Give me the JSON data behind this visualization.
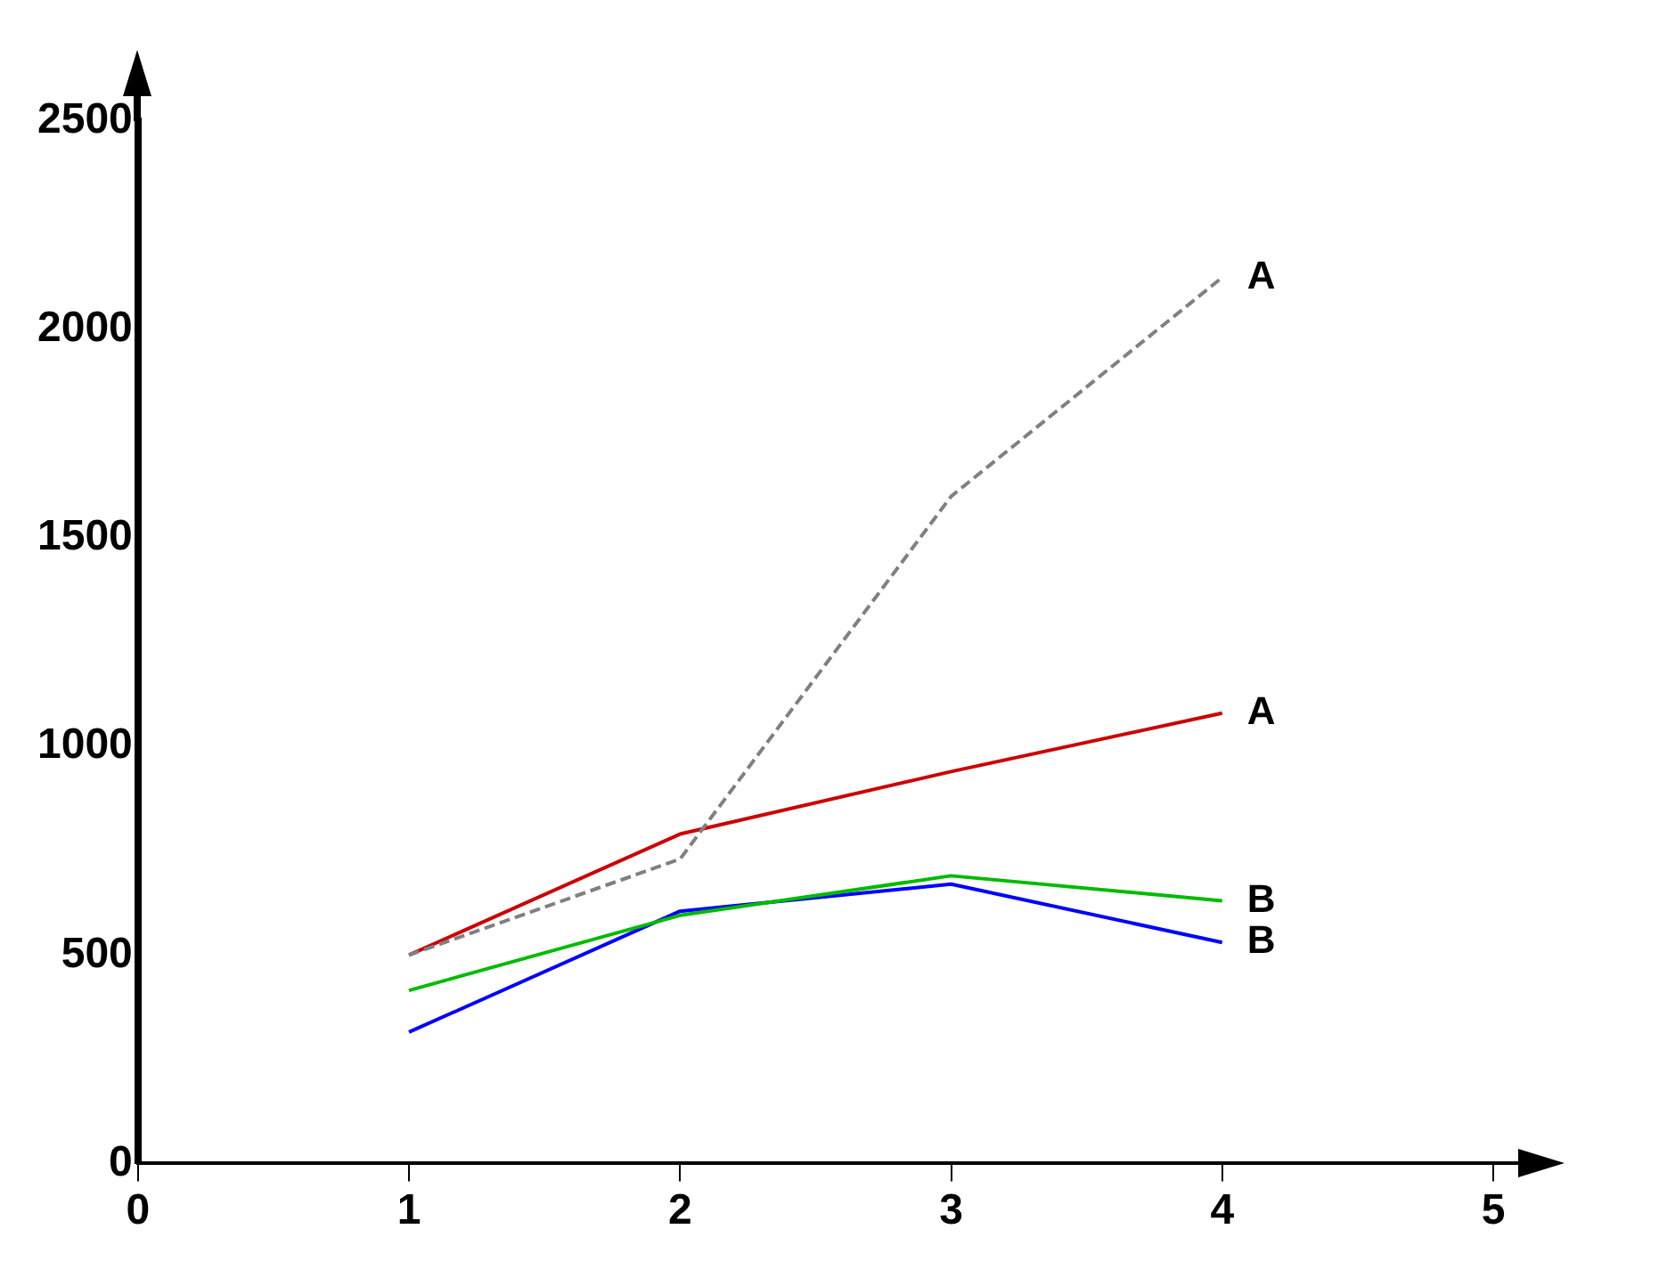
{
  "chart_data": {
    "type": "line",
    "x": [
      1,
      2,
      3,
      4
    ],
    "series": [
      {
        "name": "A",
        "color": "#808080",
        "line_style": "dashed",
        "values": [
          500,
          730,
          1600,
          2125
        ]
      },
      {
        "name": "A",
        "color": "#cc0000",
        "values": [
          500,
          790,
          940,
          1080
        ]
      },
      {
        "name": "B",
        "color": "#00bb00",
        "values": [
          415,
          595,
          690,
          630
        ]
      },
      {
        "name": "B",
        "color": "#0000ff",
        "values": [
          315,
          605,
          670,
          530
        ]
      }
    ],
    "xlim": [
      0,
      5
    ],
    "xticks": [
      0,
      1,
      2,
      3,
      4,
      5
    ],
    "ylim": [
      0,
      2500
    ],
    "yticks": [
      0,
      500,
      1000,
      1500,
      2000,
      2500
    ],
    "grid": false,
    "legend": false,
    "marker": "none"
  }
}
